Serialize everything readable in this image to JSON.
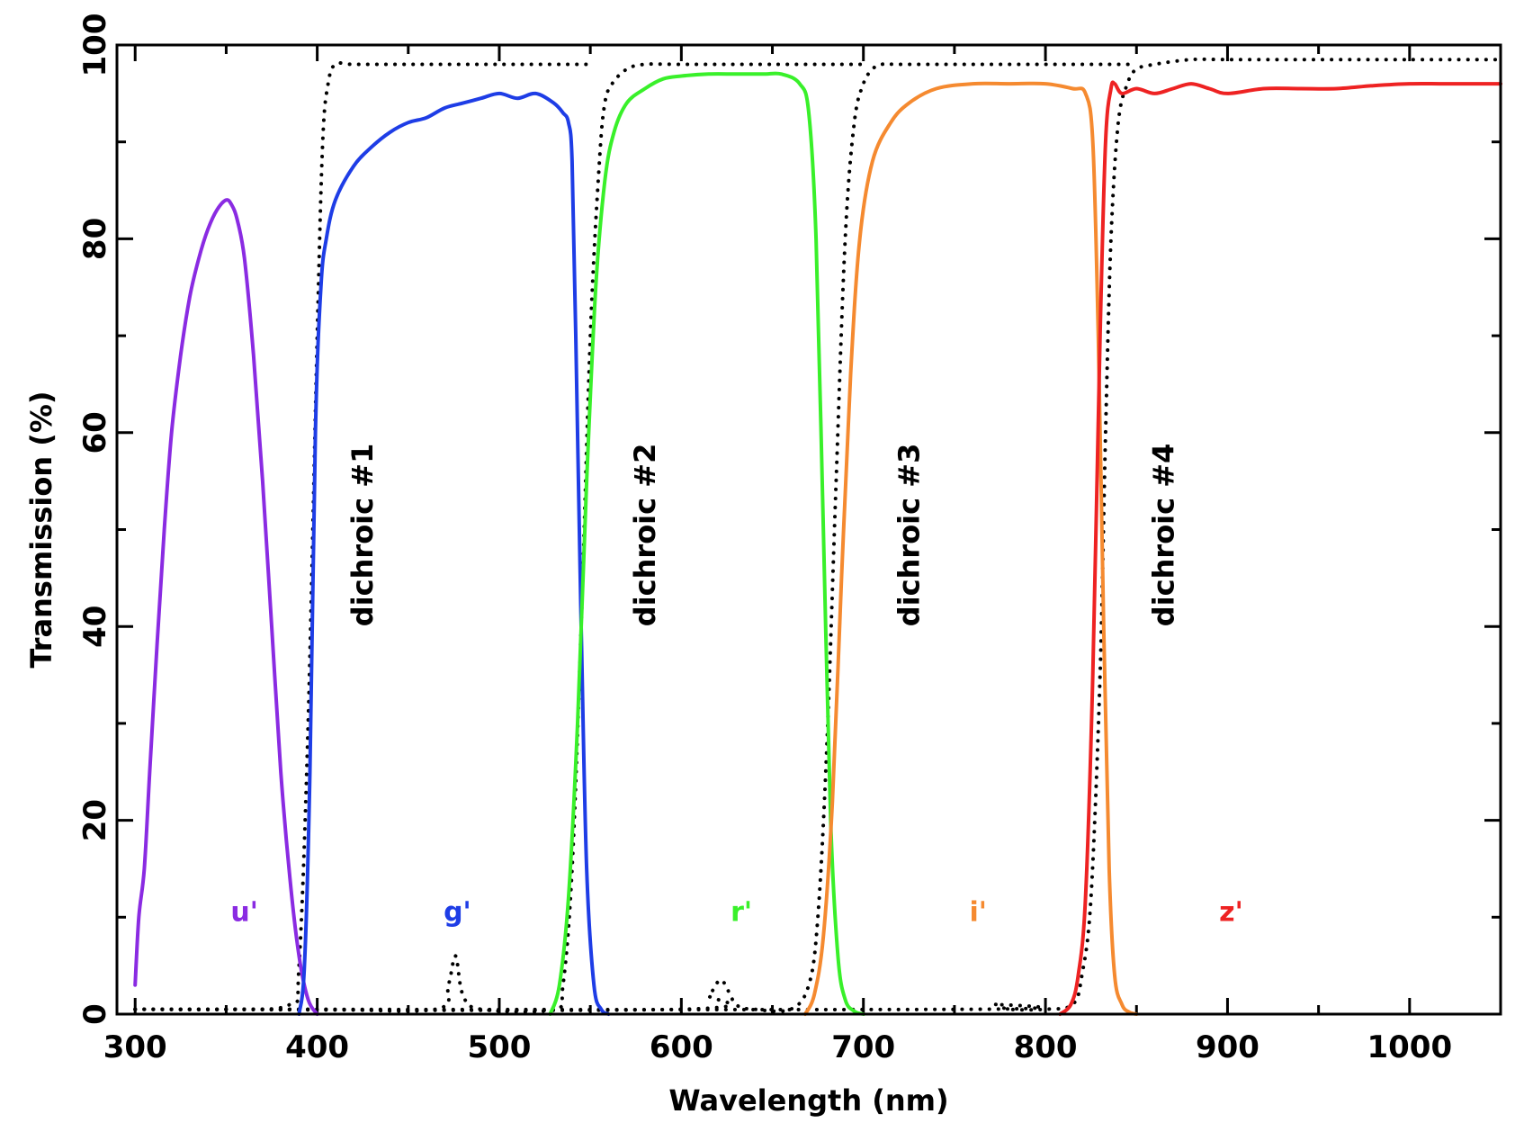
{
  "chart_data": {
    "type": "line",
    "title": "",
    "xlabel": "Wavelength (nm)",
    "ylabel": "Transmission (%)",
    "xlim": [
      290,
      1050
    ],
    "ylim": [
      0,
      100
    ],
    "xticks": [
      300,
      400,
      500,
      600,
      700,
      800,
      900,
      1000
    ],
    "yticks": [
      0,
      20,
      40,
      60,
      80,
      100
    ],
    "grid": false,
    "series": [
      {
        "name": "u'",
        "color": "#8a2be2",
        "style": "solid",
        "x": [
          300,
          302,
          305,
          308,
          312,
          316,
          320,
          325,
          330,
          335,
          340,
          345,
          350,
          353,
          356,
          360,
          365,
          370,
          375,
          380,
          385,
          390,
          395,
          400
        ],
        "y": [
          3,
          10,
          15,
          25,
          38,
          50,
          60,
          68,
          74,
          78,
          81,
          83,
          84,
          83.5,
          82,
          78,
          68,
          55,
          40,
          25,
          14,
          6,
          1.5,
          0
        ]
      },
      {
        "name": "g'",
        "color": "#1e3de6",
        "style": "solid",
        "x": [
          390,
          393,
          396,
          399,
          402,
          405,
          410,
          420,
          430,
          440,
          450,
          460,
          470,
          480,
          490,
          500,
          510,
          520,
          530,
          535,
          538,
          540,
          542,
          545,
          548,
          552,
          556,
          560
        ],
        "y": [
          0,
          5,
          25,
          60,
          75,
          80,
          84,
          87.5,
          89.5,
          91,
          92,
          92.5,
          93.5,
          94,
          94.5,
          95,
          94.5,
          95,
          94,
          93,
          92,
          88,
          70,
          40,
          15,
          3,
          0.5,
          0
        ]
      },
      {
        "name": "r'",
        "color": "#39f02a",
        "style": "solid",
        "x": [
          528,
          533,
          538,
          543,
          548,
          553,
          558,
          563,
          570,
          580,
          590,
          600,
          615,
          630,
          645,
          655,
          665,
          670,
          674,
          678,
          682,
          686,
          690,
          695,
          700
        ],
        "y": [
          0,
          3,
          12,
          30,
          55,
          75,
          86,
          91,
          94,
          95.5,
          96.5,
          96.8,
          97,
          97,
          97,
          97,
          96,
          93,
          80,
          50,
          20,
          6,
          1.5,
          0.3,
          0
        ]
      },
      {
        "name": "i'",
        "color": "#f58a30",
        "style": "solid",
        "x": [
          668,
          673,
          678,
          683,
          688,
          693,
          698,
          705,
          715,
          725,
          740,
          760,
          780,
          800,
          815,
          822,
          826,
          829,
          832,
          835,
          838,
          842,
          846,
          850
        ],
        "y": [
          0,
          2,
          8,
          22,
          45,
          66,
          80,
          88,
          92,
          94,
          95.5,
          96,
          96,
          96,
          95.5,
          95,
          90,
          70,
          40,
          15,
          4,
          1,
          0.2,
          0
        ]
      },
      {
        "name": "z'",
        "color": "#ee2222",
        "style": "solid",
        "x": [
          808,
          814,
          818,
          822,
          826,
          830,
          833,
          836,
          838,
          842,
          850,
          860,
          870,
          880,
          890,
          900,
          920,
          940,
          960,
          980,
          1000,
          1020,
          1050
        ],
        "y": [
          0,
          1,
          4,
          12,
          35,
          70,
          90,
          95.5,
          96,
          95,
          95.5,
          95,
          95.5,
          96,
          95.5,
          95,
          95.5,
          95.5,
          95.5,
          95.8,
          96,
          96,
          96
        ]
      },
      {
        "name": "dichroic #1",
        "color": "#000000",
        "style": "dotted",
        "x": [
          300,
          350,
          385,
          390,
          395,
          400,
          403,
          406,
          410,
          420,
          450,
          500,
          550
        ],
        "y": [
          0.5,
          0.5,
          1,
          5,
          30,
          70,
          90,
          96,
          98,
          98,
          98,
          98,
          98
        ]
      },
      {
        "name": "dichroic #2",
        "color": "#000000",
        "style": "dotted",
        "x": [
          300,
          400,
          465,
          472,
          476,
          480,
          490,
          530,
          535,
          540,
          545,
          550,
          555,
          558,
          562,
          570,
          580,
          600,
          650,
          700
        ],
        "y": [
          0.5,
          0.5,
          0.5,
          3,
          6,
          2,
          0.5,
          0.5,
          3,
          15,
          40,
          70,
          88,
          94,
          96,
          97.5,
          98,
          98,
          98,
          98
        ]
      },
      {
        "name": "dichroic #3",
        "color": "#000000",
        "style": "dotted",
        "x": [
          300,
          600,
          615,
          622,
          630,
          640,
          660,
          670,
          675,
          680,
          685,
          690,
          695,
          700,
          705,
          710,
          720,
          750,
          800,
          850
        ],
        "y": [
          0.5,
          0.5,
          2,
          3.5,
          1,
          0.5,
          0.5,
          3,
          10,
          28,
          55,
          80,
          92,
          96,
          97.5,
          98,
          98,
          98,
          98,
          98
        ]
      },
      {
        "name": "dichroic #4",
        "color": "#000000",
        "style": "dotted",
        "x": [
          300,
          760,
          772,
          780,
          800,
          815,
          820,
          825,
          830,
          833,
          836,
          840,
          845,
          850,
          860,
          880,
          900,
          950,
          1000,
          1050
        ],
        "y": [
          0.5,
          0.5,
          1,
          0.5,
          0.5,
          1,
          4,
          12,
          35,
          60,
          80,
          92,
          96,
          97.5,
          98,
          98.5,
          98.5,
          98.5,
          98.5,
          98.5
        ]
      }
    ],
    "annotations": [
      {
        "text": "dichroic #1",
        "x": 425,
        "y": 40,
        "rotation": -90,
        "color": "#000000"
      },
      {
        "text": "dichroic #2",
        "x": 580,
        "y": 40,
        "rotation": -90,
        "color": "#000000"
      },
      {
        "text": "dichroic #3",
        "x": 725,
        "y": 40,
        "rotation": -90,
        "color": "#000000"
      },
      {
        "text": "dichroic #4",
        "x": 865,
        "y": 40,
        "rotation": -90,
        "color": "#000000"
      },
      {
        "text": "u'",
        "x": 360,
        "y": 10.5,
        "rotation": 0,
        "color": "#8a2be2"
      },
      {
        "text": "g'",
        "x": 477,
        "y": 10.5,
        "rotation": 0,
        "color": "#1e3de6"
      },
      {
        "text": "r'",
        "x": 633,
        "y": 10.5,
        "rotation": 0,
        "color": "#39f02a"
      },
      {
        "text": "i'",
        "x": 763,
        "y": 10.5,
        "rotation": 0,
        "color": "#f58a30"
      },
      {
        "text": "z'",
        "x": 902,
        "y": 10.5,
        "rotation": 0,
        "color": "#ee2222"
      }
    ]
  }
}
